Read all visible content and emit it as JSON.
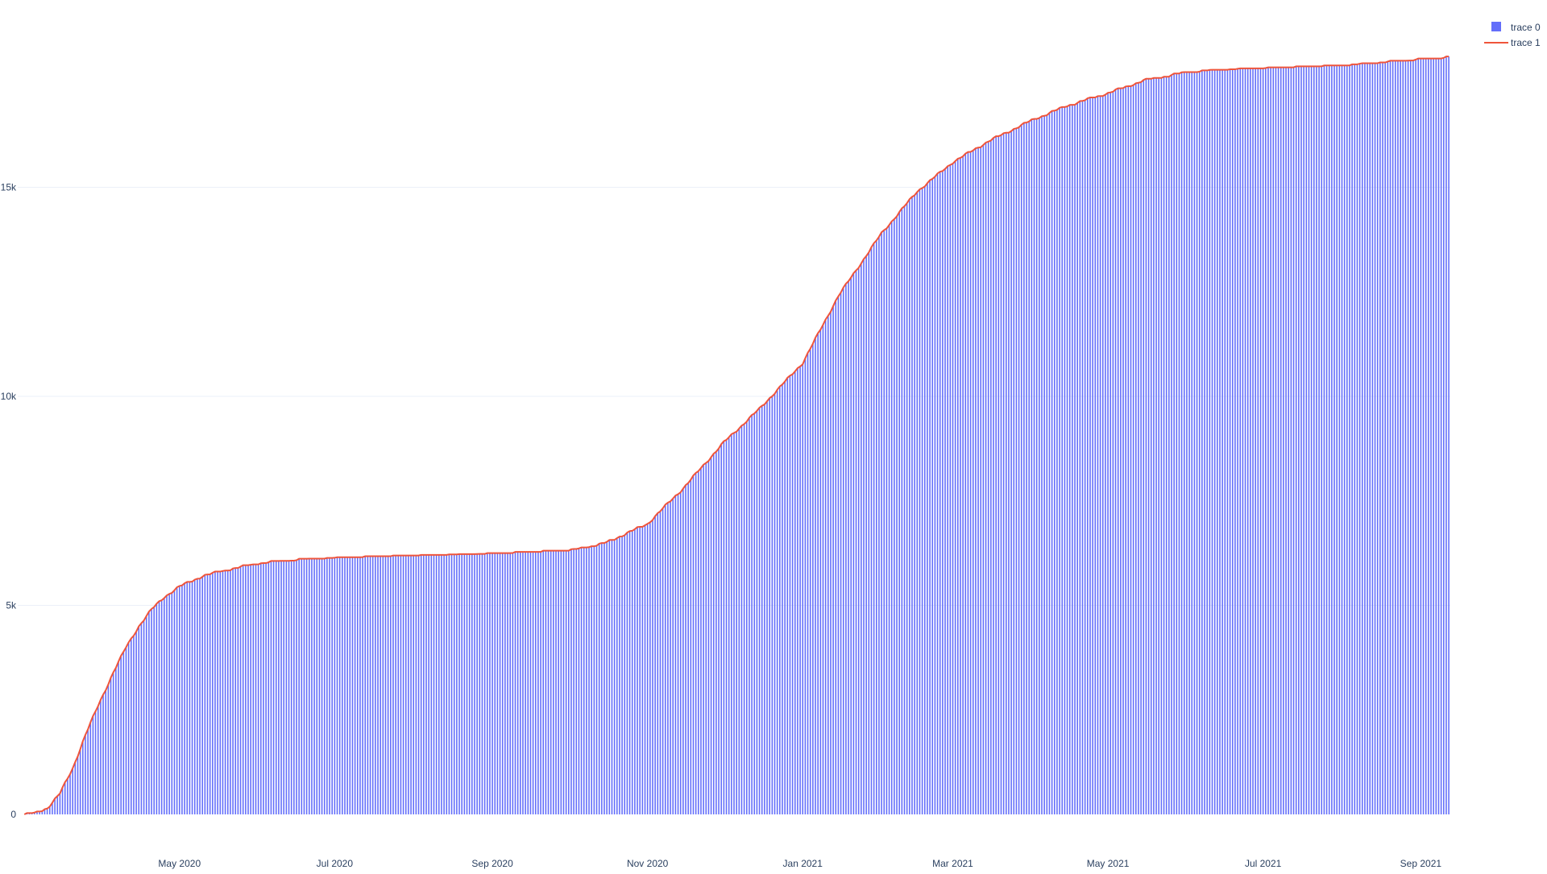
{
  "chart_data": {
    "type": "bar",
    "title": "",
    "xlabel": "",
    "ylabel": "",
    "x_range": [
      "2020-03-01",
      "2021-09-12"
    ],
    "ylim": [
      0,
      18500
    ],
    "grid": true,
    "legend_position": "top-right",
    "colors": {
      "bar": "#636efa",
      "line": "#ef553b",
      "grid": "#ebf0f8",
      "axis_text": "#2a3f5f"
    },
    "y_ticks": [
      {
        "value": 0,
        "label": "0"
      },
      {
        "value": 5000,
        "label": "5k"
      },
      {
        "value": 10000,
        "label": "10k"
      },
      {
        "value": 15000,
        "label": "15k"
      }
    ],
    "x_ticks": [
      {
        "date": "2020-05-01",
        "label": "May 2020"
      },
      {
        "date": "2020-07-01",
        "label": "Jul 2020"
      },
      {
        "date": "2020-09-01",
        "label": "Sep 2020"
      },
      {
        "date": "2020-11-01",
        "label": "Nov 2020"
      },
      {
        "date": "2021-01-01",
        "label": "Jan 2021"
      },
      {
        "date": "2021-03-01",
        "label": "Mar 2021"
      },
      {
        "date": "2021-05-01",
        "label": "May 2021"
      },
      {
        "date": "2021-07-01",
        "label": "Jul 2021"
      },
      {
        "date": "2021-09-01",
        "label": "Sep 2021"
      }
    ],
    "series": [
      {
        "name": "trace 0",
        "kind": "bar",
        "color": "#636efa"
      },
      {
        "name": "trace 1",
        "kind": "line",
        "color": "#ef553b"
      }
    ],
    "anchors": [
      [
        "2020-03-01",
        0
      ],
      [
        "2020-03-05",
        20
      ],
      [
        "2020-03-10",
        150
      ],
      [
        "2020-03-15",
        500
      ],
      [
        "2020-03-20",
        1100
      ],
      [
        "2020-03-25",
        1900
      ],
      [
        "2020-03-30",
        2600
      ],
      [
        "2020-04-05",
        3400
      ],
      [
        "2020-04-10",
        4000
      ],
      [
        "2020-04-15",
        4500
      ],
      [
        "2020-04-20",
        4900
      ],
      [
        "2020-04-25",
        5200
      ],
      [
        "2020-05-01",
        5450
      ],
      [
        "2020-05-10",
        5700
      ],
      [
        "2020-05-20",
        5850
      ],
      [
        "2020-06-01",
        6000
      ],
      [
        "2020-06-15",
        6080
      ],
      [
        "2020-07-01",
        6120
      ],
      [
        "2020-08-01",
        6170
      ],
      [
        "2020-09-01",
        6220
      ],
      [
        "2020-10-01",
        6300
      ],
      [
        "2020-10-15",
        6480
      ],
      [
        "2020-11-01",
        6950
      ],
      [
        "2020-11-15",
        7800
      ],
      [
        "2020-12-01",
        8900
      ],
      [
        "2020-12-15",
        9700
      ],
      [
        "2021-01-01",
        10800
      ],
      [
        "2021-01-15",
        12400
      ],
      [
        "2021-02-01",
        13900
      ],
      [
        "2021-02-15",
        14900
      ],
      [
        "2021-03-01",
        15600
      ],
      [
        "2021-03-15",
        16100
      ],
      [
        "2021-04-01",
        16600
      ],
      [
        "2021-04-15",
        16950
      ],
      [
        "2021-05-01",
        17250
      ],
      [
        "2021-05-15",
        17550
      ],
      [
        "2021-06-01",
        17750
      ],
      [
        "2021-06-15",
        17800
      ],
      [
        "2021-07-01",
        17830
      ],
      [
        "2021-08-01",
        17900
      ],
      [
        "2021-09-01",
        18050
      ],
      [
        "2021-09-12",
        18100
      ]
    ]
  }
}
